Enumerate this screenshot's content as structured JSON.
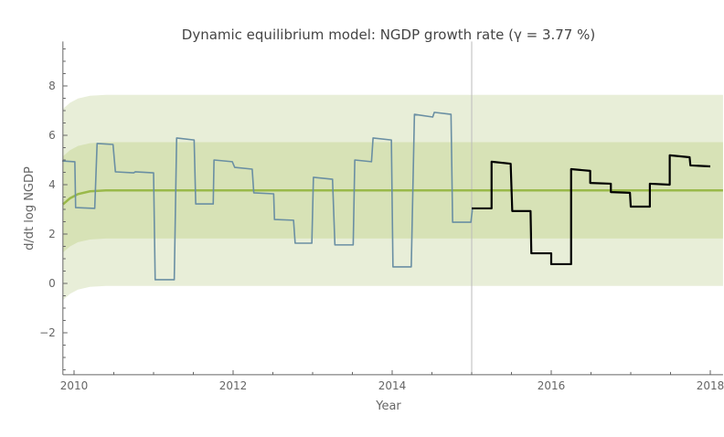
{
  "chart_data": {
    "type": "line",
    "title": "Dynamic equilibrium model: NGDP growth rate (γ = 3.77 %)",
    "xlabel": "Year",
    "ylabel": "d/dt log NGDP",
    "xlim": [
      2009.86,
      2018.16
    ],
    "ylim": [
      -3.7,
      9.8
    ],
    "x_ticks": [
      2010,
      2012,
      2014,
      2016,
      2018
    ],
    "x_tick_labels": [
      "2010",
      "2012",
      "2014",
      "2016",
      "2018"
    ],
    "y_ticks": [
      -2,
      0,
      2,
      4,
      6,
      8
    ],
    "y_tick_labels": [
      "−2",
      "0",
      "2",
      "4",
      "6",
      "8"
    ],
    "grid": false,
    "vertical_marker_x": 2015.0,
    "model": {
      "color": "#9ab94a",
      "points": [
        [
          2009.86,
          3.2
        ],
        [
          2009.95,
          3.45
        ],
        [
          2010.05,
          3.62
        ],
        [
          2010.2,
          3.73
        ],
        [
          2010.4,
          3.77
        ],
        [
          2018.16,
          3.77
        ]
      ],
      "band_inner_halfwidth": 1.95,
      "band_outer_halfwidth": 3.87,
      "band_inner_color": "#d7e2b6",
      "band_outer_color": "#e8eed8"
    },
    "series": [
      {
        "color": "#6a8fa3",
        "points": [
          [
            2009.85,
            4.96
          ],
          [
            2010.01,
            4.93
          ],
          [
            2010.02,
            3.07
          ],
          [
            2010.26,
            3.04
          ],
          [
            2010.29,
            5.67
          ],
          [
            2010.49,
            5.63
          ],
          [
            2010.52,
            4.52
          ],
          [
            2010.75,
            4.48
          ],
          [
            2010.77,
            4.52
          ],
          [
            2011.0,
            4.48
          ],
          [
            2011.02,
            0.15
          ],
          [
            2011.26,
            0.15
          ],
          [
            2011.29,
            5.89
          ],
          [
            2011.51,
            5.81
          ],
          [
            2011.53,
            3.22
          ],
          [
            2011.75,
            3.22
          ],
          [
            2011.76,
            5.0
          ],
          [
            2011.99,
            4.93
          ],
          [
            2012.02,
            4.7
          ],
          [
            2012.24,
            4.63
          ],
          [
            2012.26,
            3.67
          ],
          [
            2012.51,
            3.63
          ],
          [
            2012.52,
            2.59
          ],
          [
            2012.76,
            2.56
          ],
          [
            2012.78,
            1.63
          ],
          [
            2012.99,
            1.63
          ],
          [
            2013.01,
            4.3
          ],
          [
            2013.25,
            4.22
          ],
          [
            2013.28,
            1.56
          ],
          [
            2013.51,
            1.56
          ],
          [
            2013.53,
            5.0
          ],
          [
            2013.74,
            4.93
          ],
          [
            2013.76,
            5.89
          ],
          [
            2013.99,
            5.81
          ],
          [
            2014.01,
            0.67
          ],
          [
            2014.24,
            0.67
          ],
          [
            2014.28,
            6.85
          ],
          [
            2014.51,
            6.74
          ],
          [
            2014.53,
            6.93
          ],
          [
            2014.74,
            6.85
          ],
          [
            2014.76,
            2.48
          ],
          [
            2014.99,
            2.48
          ],
          [
            2015.01,
            3.04
          ]
        ]
      },
      {
        "color": "#000000",
        "points": [
          [
            2015.0,
            3.04
          ],
          [
            2015.25,
            3.04
          ],
          [
            2015.25,
            4.93
          ],
          [
            2015.49,
            4.85
          ],
          [
            2015.51,
            2.93
          ],
          [
            2015.74,
            2.93
          ],
          [
            2015.75,
            1.22
          ],
          [
            2016.0,
            1.22
          ],
          [
            2016.0,
            0.78
          ],
          [
            2016.25,
            0.78
          ],
          [
            2016.25,
            4.63
          ],
          [
            2016.49,
            4.56
          ],
          [
            2016.49,
            4.07
          ],
          [
            2016.75,
            4.04
          ],
          [
            2016.75,
            3.7
          ],
          [
            2016.99,
            3.67
          ],
          [
            2017.0,
            3.11
          ],
          [
            2017.24,
            3.11
          ],
          [
            2017.24,
            4.04
          ],
          [
            2017.49,
            4.0
          ],
          [
            2017.49,
            5.19
          ],
          [
            2017.74,
            5.11
          ],
          [
            2017.75,
            4.78
          ],
          [
            2018.0,
            4.74
          ]
        ]
      }
    ]
  }
}
